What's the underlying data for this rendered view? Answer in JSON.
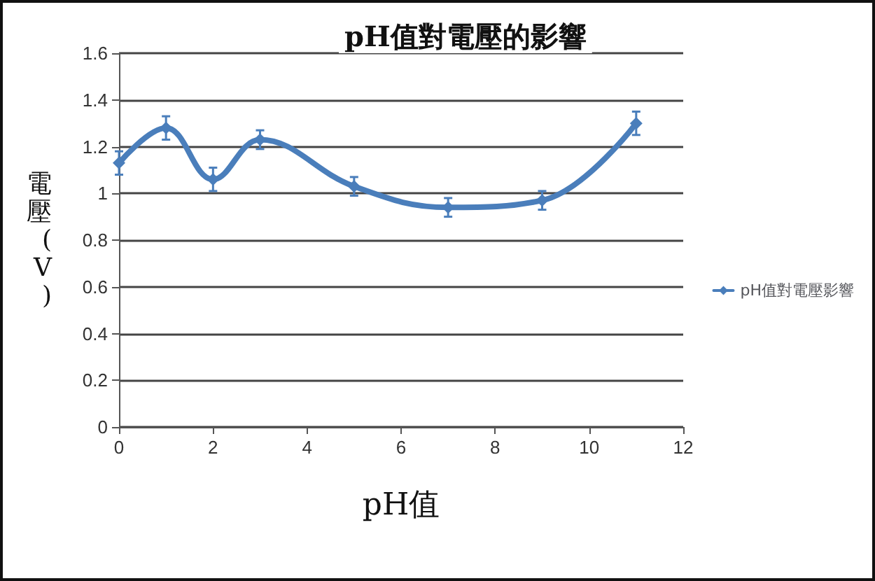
{
  "chart_data": {
    "type": "line",
    "title": "pH值對電壓的影響",
    "xlabel": "pH值",
    "ylabel": "電壓(V)",
    "x": [
      0,
      1,
      2,
      3,
      5,
      7,
      9,
      11
    ],
    "series": [
      {
        "name": "pH值對電壓影響",
        "color": "#4a7ebb",
        "values": [
          1.13,
          1.28,
          1.06,
          1.23,
          1.03,
          0.94,
          0.97,
          1.3
        ],
        "errors": [
          0.05,
          0.05,
          0.05,
          0.04,
          0.04,
          0.04,
          0.04,
          0.05
        ]
      }
    ],
    "xlim": [
      0,
      12
    ],
    "xticks": [
      0,
      2,
      4,
      6,
      8,
      10,
      12
    ],
    "ylim": [
      0,
      1.6
    ],
    "yticks": [
      0,
      0.2,
      0.4,
      0.6,
      0.8,
      1,
      1.2,
      1.4,
      1.6
    ],
    "grid": "y",
    "legend": "right",
    "marker": "diamond",
    "line_style": "solid"
  }
}
